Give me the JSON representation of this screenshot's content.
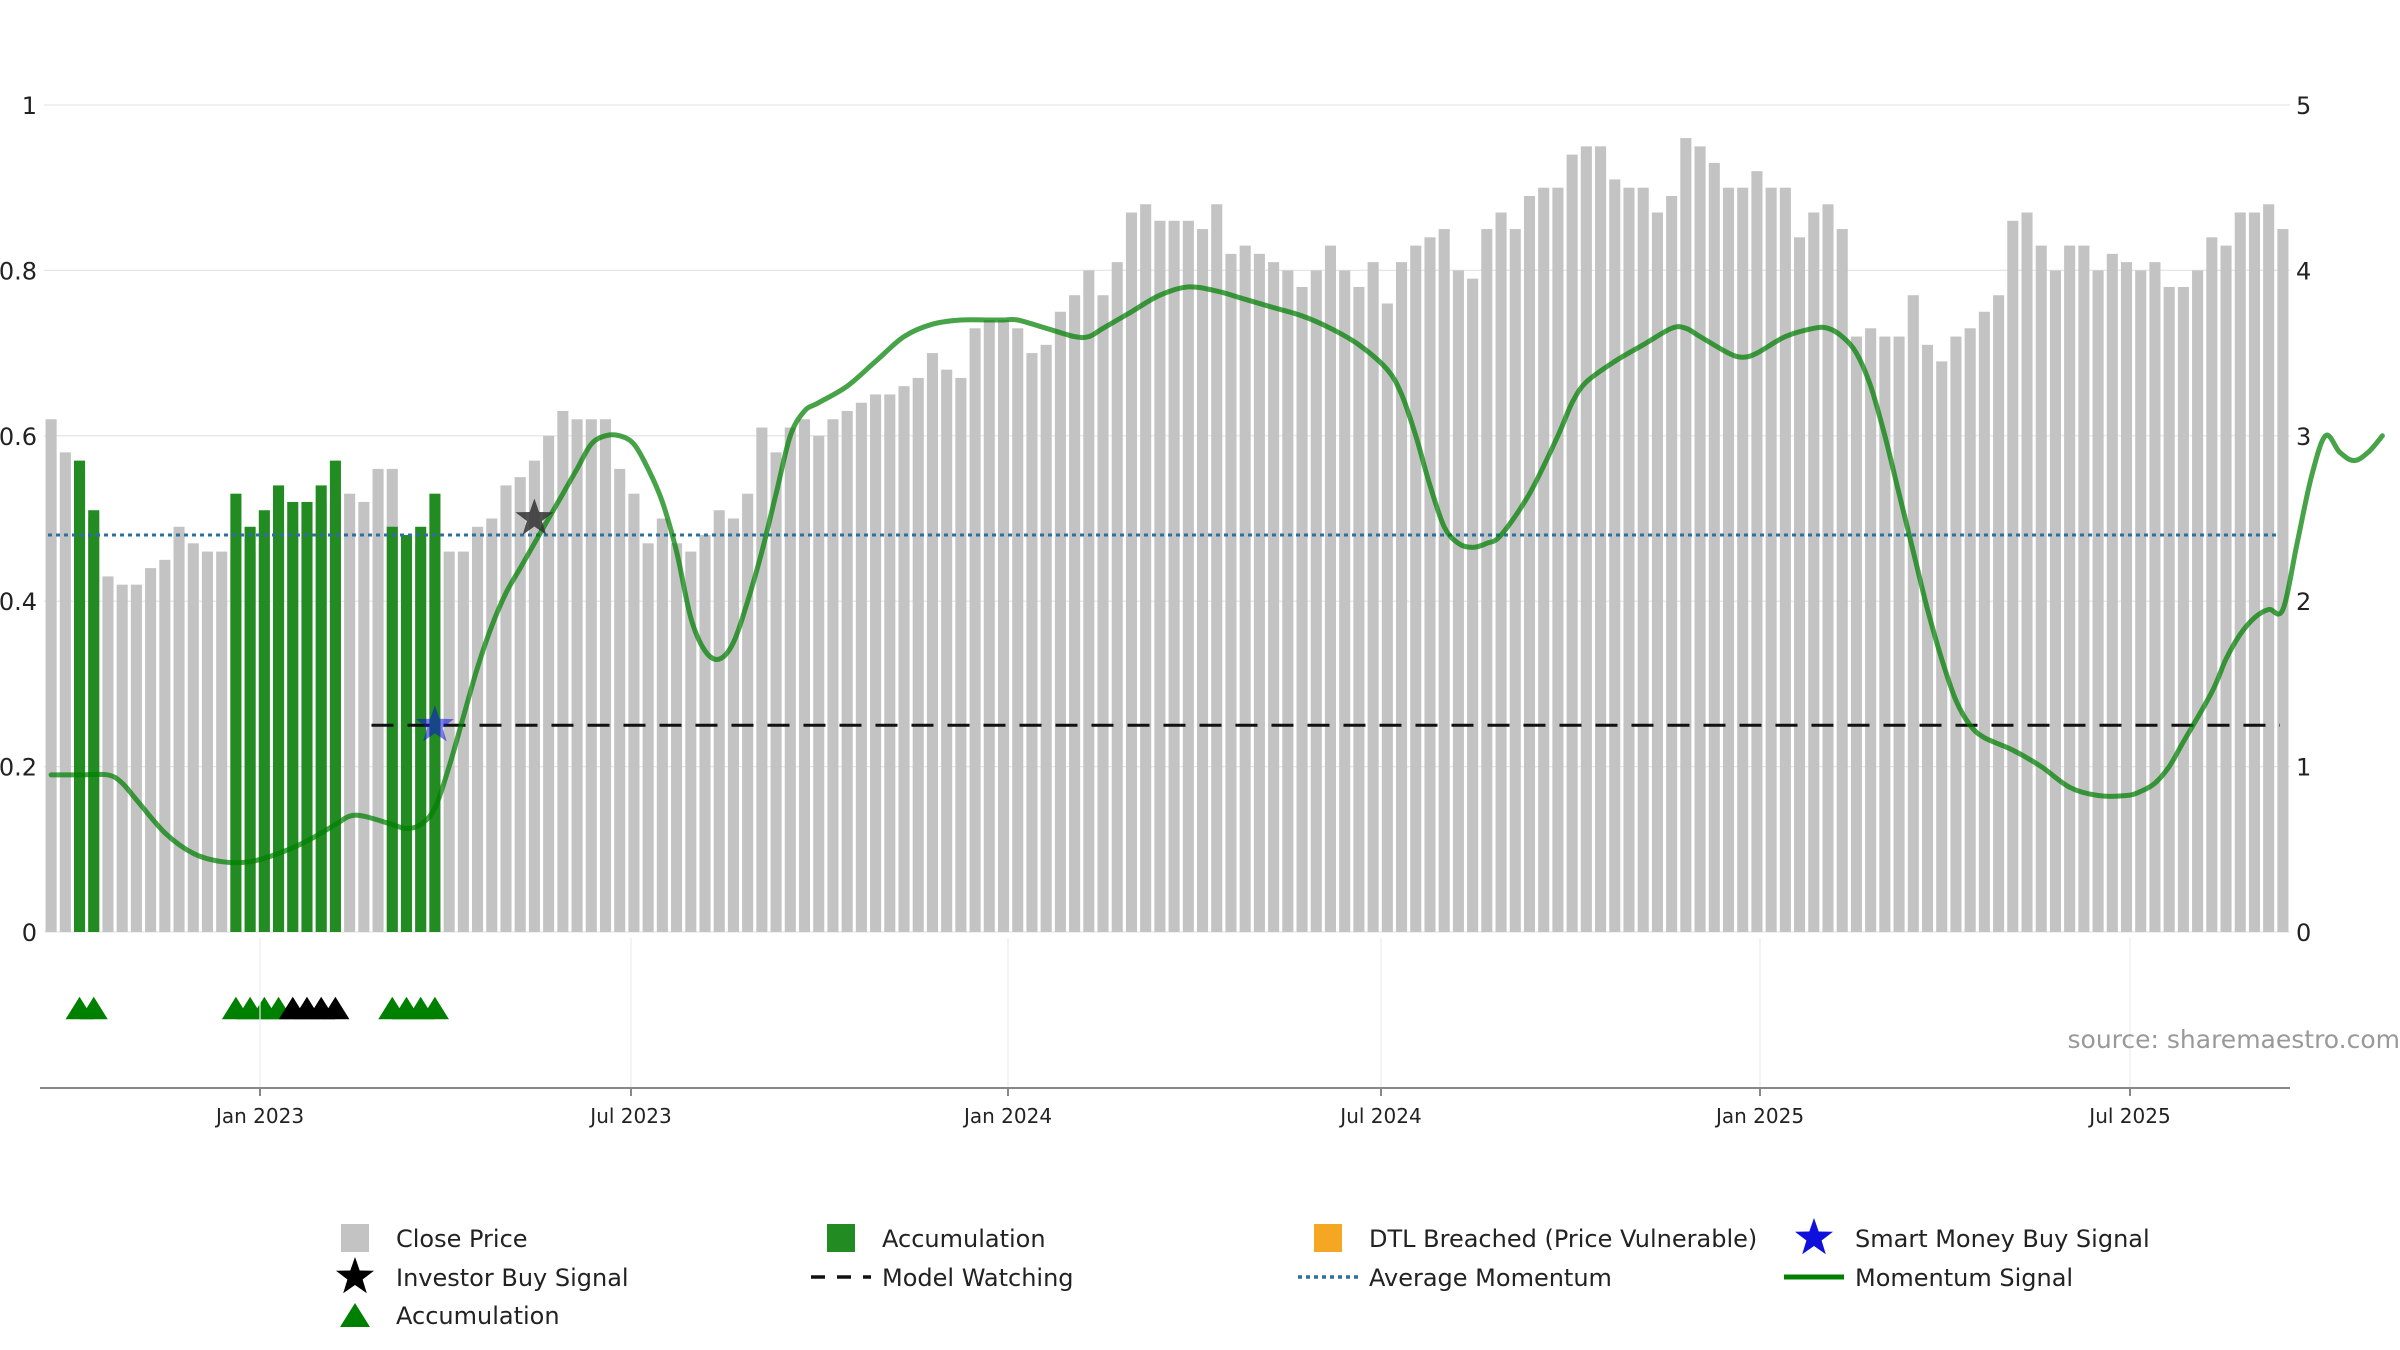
{
  "chart_data": {
    "type": "bar+line",
    "source_label": "source: sharemaestro.com",
    "left_axis": {
      "ylim": [
        0,
        1
      ],
      "ticks": [
        "0",
        "0.2",
        "0.4",
        "0.6",
        "0.8",
        "1"
      ]
    },
    "right_axis": {
      "ylim": [
        0,
        5
      ],
      "ticks": [
        "0",
        "1",
        "2",
        "3",
        "4",
        "5"
      ]
    },
    "x_axis": {
      "ticks": [
        "Jan 2023",
        "Jul 2023",
        "Jan 2024",
        "Jul 2024",
        "Jan 2025",
        "Jul 2025"
      ]
    },
    "close_price": [
      3.1,
      2.9,
      2.8,
      2.5,
      2.15,
      2.1,
      2.1,
      2.2,
      2.25,
      2.45,
      2.35,
      2.3,
      2.3,
      2.25,
      2.3,
      2.35,
      2.45,
      2.45,
      2.55,
      2.6,
      2.6,
      2.65,
      2.6,
      2.8,
      2.8,
      2.35,
      2.35,
      2.35,
      2.3,
      2.3,
      2.45,
      2.5,
      2.7,
      2.75,
      2.85,
      3.0,
      3.15,
      3.1,
      3.1,
      3.1,
      2.8,
      2.65,
      2.35,
      2.5,
      2.35,
      2.3,
      2.4,
      2.55,
      2.5,
      2.65,
      3.05,
      2.9,
      3.05,
      3.1,
      3.0,
      3.1,
      3.15,
      3.2,
      3.25,
      3.25,
      3.3,
      3.35,
      3.5,
      3.4,
      3.35,
      3.65,
      3.7,
      3.7,
      3.65,
      3.5,
      3.55,
      3.75,
      3.85,
      4.0,
      3.85,
      4.05,
      4.35,
      4.4,
      4.3,
      4.3,
      4.3,
      4.25,
      4.4,
      4.1,
      4.15,
      4.1,
      4.05,
      4.0,
      3.9,
      4.0,
      4.15,
      4.0,
      3.9,
      4.05,
      3.8,
      4.05,
      4.15,
      4.2,
      4.25,
      4.0,
      3.95,
      4.25,
      4.35,
      4.25,
      4.45,
      4.5,
      4.5,
      4.7,
      4.75,
      4.75,
      4.55,
      4.5,
      4.5,
      4.35,
      4.45,
      4.8,
      4.75,
      4.65,
      4.5,
      4.5,
      4.6,
      4.5,
      4.5,
      4.2,
      4.35,
      4.4,
      4.25,
      3.6,
      3.65,
      3.6,
      3.6,
      3.85,
      3.55,
      3.45,
      3.6,
      3.65,
      3.75,
      3.85,
      4.3,
      4.35,
      4.15,
      4.0,
      4.15,
      4.15,
      4.0,
      4.1,
      4.05,
      4.0,
      4.05,
      3.9,
      3.9,
      4.0,
      4.2,
      4.15,
      4.35,
      4.35,
      4.4,
      4.25
    ],
    "accumulation_bars": [
      {
        "index": 2,
        "value": 0.57
      },
      {
        "index": 3,
        "value": 0.51
      },
      {
        "index": 13,
        "value": 0.53
      },
      {
        "index": 14,
        "value": 0.49
      },
      {
        "index": 15,
        "value": 0.51
      },
      {
        "index": 16,
        "value": 0.54
      },
      {
        "index": 17,
        "value": 0.52
      },
      {
        "index": 18,
        "value": 0.52
      },
      {
        "index": 19,
        "value": 0.54
      },
      {
        "index": 20,
        "value": 0.57
      },
      {
        "index": 24,
        "value": 0.49
      },
      {
        "index": 25,
        "value": 0.48
      },
      {
        "index": 26,
        "value": 0.49
      },
      {
        "index": 27,
        "value": 0.53
      }
    ],
    "momentum_signal": [
      [
        0,
        0.19
      ],
      [
        2,
        0.19
      ],
      [
        4,
        0.19
      ],
      [
        5,
        0.18
      ],
      [
        6,
        0.16
      ],
      [
        8,
        0.12
      ],
      [
        10,
        0.095
      ],
      [
        12,
        0.085
      ],
      [
        14,
        0.085
      ],
      [
        16,
        0.095
      ],
      [
        18,
        0.11
      ],
      [
        20,
        0.13
      ],
      [
        21,
        0.14
      ],
      [
        22,
        0.14
      ],
      [
        24,
        0.13
      ],
      [
        25,
        0.125
      ],
      [
        26,
        0.13
      ],
      [
        27,
        0.15
      ],
      [
        28,
        0.2
      ],
      [
        29,
        0.26
      ],
      [
        30,
        0.32
      ],
      [
        31,
        0.37
      ],
      [
        32,
        0.41
      ],
      [
        33,
        0.44
      ],
      [
        34,
        0.47
      ],
      [
        35,
        0.5
      ],
      [
        36,
        0.53
      ],
      [
        37,
        0.56
      ],
      [
        38,
        0.59
      ],
      [
        39,
        0.6
      ],
      [
        40,
        0.6
      ],
      [
        41,
        0.59
      ],
      [
        42,
        0.56
      ],
      [
        43,
        0.52
      ],
      [
        44,
        0.46
      ],
      [
        45,
        0.38
      ],
      [
        46,
        0.34
      ],
      [
        47,
        0.33
      ],
      [
        48,
        0.35
      ],
      [
        49,
        0.4
      ],
      [
        50,
        0.46
      ],
      [
        51,
        0.53
      ],
      [
        52,
        0.6
      ],
      [
        53,
        0.63
      ],
      [
        54,
        0.64
      ],
      [
        56,
        0.66
      ],
      [
        58,
        0.69
      ],
      [
        60,
        0.72
      ],
      [
        62,
        0.735
      ],
      [
        64,
        0.74
      ],
      [
        66,
        0.74
      ],
      [
        67,
        0.74
      ],
      [
        68,
        0.74
      ],
      [
        70,
        0.73
      ],
      [
        72,
        0.72
      ],
      [
        73,
        0.72
      ],
      [
        74,
        0.73
      ],
      [
        76,
        0.75
      ],
      [
        78,
        0.77
      ],
      [
        80,
        0.78
      ],
      [
        82,
        0.775
      ],
      [
        84,
        0.765
      ],
      [
        86,
        0.755
      ],
      [
        88,
        0.745
      ],
      [
        90,
        0.73
      ],
      [
        92,
        0.71
      ],
      [
        94,
        0.68
      ],
      [
        95,
        0.65
      ],
      [
        96,
        0.6
      ],
      [
        97,
        0.54
      ],
      [
        98,
        0.49
      ],
      [
        99,
        0.47
      ],
      [
        100,
        0.465
      ],
      [
        101,
        0.47
      ],
      [
        102,
        0.48
      ],
      [
        104,
        0.53
      ],
      [
        106,
        0.6
      ],
      [
        107,
        0.64
      ],
      [
        108,
        0.665
      ],
      [
        110,
        0.69
      ],
      [
        112,
        0.71
      ],
      [
        114,
        0.73
      ],
      [
        115,
        0.73
      ],
      [
        116,
        0.72
      ],
      [
        118,
        0.7
      ],
      [
        119,
        0.695
      ],
      [
        120,
        0.7
      ],
      [
        122,
        0.72
      ],
      [
        124,
        0.73
      ],
      [
        125,
        0.73
      ],
      [
        126,
        0.72
      ],
      [
        127,
        0.7
      ],
      [
        128,
        0.66
      ],
      [
        129,
        0.6
      ],
      [
        130,
        0.53
      ],
      [
        131,
        0.46
      ],
      [
        132,
        0.39
      ],
      [
        133,
        0.33
      ],
      [
        134,
        0.28
      ],
      [
        135,
        0.25
      ],
      [
        136,
        0.235
      ],
      [
        138,
        0.22
      ],
      [
        140,
        0.2
      ],
      [
        142,
        0.175
      ],
      [
        144,
        0.165
      ],
      [
        146,
        0.165
      ],
      [
        147,
        0.17
      ],
      [
        148,
        0.18
      ],
      [
        149,
        0.2
      ],
      [
        150,
        0.23
      ],
      [
        152,
        0.29
      ],
      [
        153,
        0.33
      ],
      [
        154,
        0.36
      ],
      [
        155,
        0.38
      ],
      [
        156,
        0.39
      ],
      [
        157,
        0.39
      ],
      [
        158,
        0.47
      ],
      [
        159,
        0.55
      ],
      [
        160,
        0.6
      ],
      [
        161,
        0.58
      ],
      [
        162,
        0.57
      ],
      [
        163,
        0.58
      ],
      [
        164,
        0.6
      ]
    ],
    "average_momentum": 0.48,
    "model_watching": {
      "level": 0.25,
      "from_index": 25
    },
    "investor_buy_signal": {
      "index": 34,
      "value": 0.5
    },
    "smart_money_buy_signal": {
      "index": 27,
      "value": 0.25
    },
    "accumulation_markers_green": [
      2,
      3,
      13,
      14,
      15,
      16,
      24,
      25,
      26,
      27
    ],
    "accumulation_markers_black": [
      17,
      18,
      19,
      20
    ],
    "legend": [
      {
        "label": "Close Price",
        "symbol": "square-gray"
      },
      {
        "label": "Accumulation",
        "symbol": "square-green"
      },
      {
        "label": "DTL Breached (Price Vulnerable)",
        "symbol": "square-orange"
      },
      {
        "label": "Smart Money Buy Signal",
        "symbol": "star-blue"
      },
      {
        "label": "Investor Buy Signal",
        "symbol": "star-black"
      },
      {
        "label": "Model Watching",
        "symbol": "dash-black"
      },
      {
        "label": "Average Momentum",
        "symbol": "dot-blue"
      },
      {
        "label": "Momentum Signal",
        "symbol": "line-green"
      },
      {
        "label": "Accumulation",
        "symbol": "triangle-green"
      }
    ],
    "colors": {
      "close_price": "#c3c3c3",
      "accumulation": "#228b22",
      "momentum": "#008000",
      "average_momentum": "#2f6f9f",
      "model_watching": "#111111",
      "dtl": "#f5a623",
      "smart_money": "#1010dd",
      "investor": "#000000",
      "grid": "#e6e6e6"
    }
  }
}
